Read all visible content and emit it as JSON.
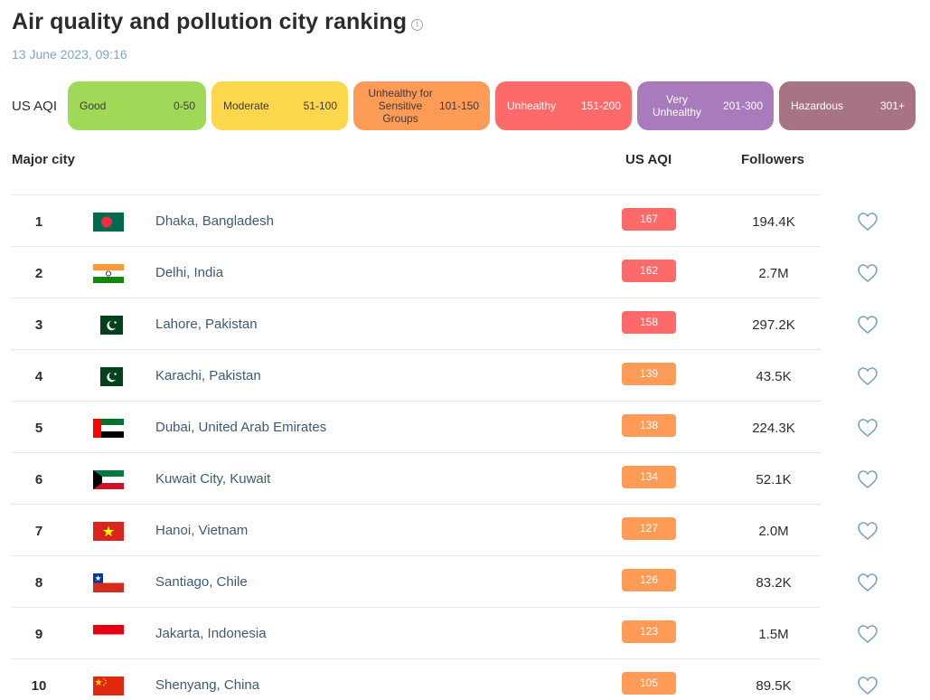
{
  "page": {
    "title": "Air quality and pollution city ranking",
    "info_icon": "info-icon",
    "timestamp": "13 June 2023, 09:16"
  },
  "legend": {
    "label": "US AQI",
    "levels": [
      {
        "name": "Good",
        "range": "0-50",
        "color": "#a0d957"
      },
      {
        "name": "Moderate",
        "range": "51-100",
        "color": "#fdd74b"
      },
      {
        "name": "Unhealthy for Sensitive Groups",
        "range": "101-150",
        "color": "#fe9b57"
      },
      {
        "name": "Unhealthy",
        "range": "151-200",
        "color": "#fe6a69"
      },
      {
        "name": "Very Unhealthy",
        "range": "201-300",
        "color": "#a97abc"
      },
      {
        "name": "Hazardous",
        "range": "301+",
        "color": "#a87383"
      }
    ]
  },
  "table": {
    "headers": {
      "city": "Major city",
      "aqi": "US AQI",
      "followers": "Followers"
    },
    "rows": [
      {
        "rank": "1",
        "flag": "bangladesh-flag-icon",
        "city": "Dhaka, Bangladesh",
        "aqi": "167",
        "followers": "194.4K"
      },
      {
        "rank": "2",
        "flag": "india-flag-icon",
        "city": "Delhi, India",
        "aqi": "162",
        "followers": "2.7M"
      },
      {
        "rank": "3",
        "flag": "pakistan-flag-icon",
        "city": "Lahore, Pakistan",
        "aqi": "158",
        "followers": "297.2K"
      },
      {
        "rank": "4",
        "flag": "pakistan-flag-icon",
        "city": "Karachi, Pakistan",
        "aqi": "139",
        "followers": "43.5K"
      },
      {
        "rank": "5",
        "flag": "uae-flag-icon",
        "city": "Dubai, United Arab Emirates",
        "aqi": "138",
        "followers": "224.3K"
      },
      {
        "rank": "6",
        "flag": "kuwait-flag-icon",
        "city": "Kuwait City, Kuwait",
        "aqi": "134",
        "followers": "52.1K"
      },
      {
        "rank": "7",
        "flag": "vietnam-flag-icon",
        "city": "Hanoi, Vietnam",
        "aqi": "127",
        "followers": "2.0M"
      },
      {
        "rank": "8",
        "flag": "chile-flag-icon",
        "city": "Santiago, Chile",
        "aqi": "126",
        "followers": "83.2K"
      },
      {
        "rank": "9",
        "flag": "indonesia-flag-icon",
        "city": "Jakarta, Indonesia",
        "aqi": "123",
        "followers": "1.5M"
      },
      {
        "rank": "10",
        "flag": "china-flag-icon",
        "city": "Shenyang, China",
        "aqi": "105",
        "followers": "89.5K"
      }
    ],
    "follow_icon": "heart-icon"
  }
}
